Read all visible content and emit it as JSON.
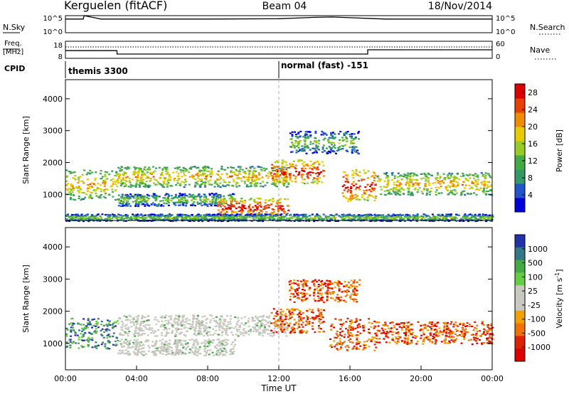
{
  "header": {
    "station": "Kerguelen (fitACF)",
    "beam": "Beam 04",
    "date": "18/Nov/2014"
  },
  "colors": {
    "power_scale": [
      "#0000dd",
      "#2255cc",
      "#339966",
      "#44aa44",
      "#99cc22",
      "#e8cc00",
      "#f08c00",
      "#e84000",
      "#dd0000"
    ],
    "velocity_scale": [
      "#2233aa",
      "#337788",
      "#44aa44",
      "#66cc44",
      "#c8c8c0",
      "#c8c8c0",
      "#f0a000",
      "#f07000",
      "#dd2200",
      "#dd0000"
    ]
  },
  "chart_data": [
    {
      "type": "line",
      "panel": "noise",
      "left_label": "N.Sky",
      "right_label": "N.Search",
      "left_ticks": [
        "10^5",
        "10^0"
      ],
      "right_ticks": [
        "10^5",
        "10^0"
      ],
      "series": [
        {
          "name": "N.Sky",
          "x": [
            0,
            1.0,
            1.05,
            2,
            8,
            12,
            13,
            14,
            15,
            16,
            17,
            18,
            24
          ],
          "y": [
            4.0,
            4.0,
            5.0,
            4.0,
            4.0,
            4.1,
            4.3,
            4.5,
            4.6,
            4.4,
            4.2,
            4.0,
            4.0
          ]
        }
      ]
    },
    {
      "type": "line",
      "panel": "frequency",
      "left_label": "Freq.",
      "left_unit": "[MHz]",
      "right_label": "Nave",
      "left_ticks": [
        "18",
        "8"
      ],
      "right_ticks": [
        "60",
        "0"
      ],
      "series": [
        {
          "name": "Freq.",
          "x": [
            0,
            2.9,
            2.9,
            17,
            17,
            24
          ],
          "y": [
            12.5,
            12.5,
            10.5,
            10.5,
            13.0,
            13.0
          ]
        },
        {
          "name": "Nave",
          "style": "dotted",
          "x": [
            0,
            24
          ],
          "y": [
            40,
            40
          ]
        }
      ]
    },
    {
      "type": "table",
      "panel": "cpid",
      "label": "CPID",
      "segments": [
        {
          "start": 0,
          "label": "themis 3300"
        },
        {
          "start": 12,
          "label": "normal (fast) -151"
        }
      ]
    },
    {
      "type": "heatmap",
      "panel": "power",
      "ylabel": "Slant Range [km]",
      "yticks": [
        1000,
        2000,
        3000,
        4000
      ],
      "ylim": [
        180,
        4600
      ],
      "xlim": [
        0,
        24
      ],
      "colorbar": {
        "label": "Power [dB]",
        "ticks": [
          4,
          8,
          12,
          16,
          20,
          24,
          28
        ],
        "range": [
          0,
          30
        ]
      },
      "bands": [
        {
          "x0": 0.0,
          "x1": 2.9,
          "y0": 850,
          "y1": 1800,
          "level": "mid"
        },
        {
          "x0": 2.9,
          "x1": 12.5,
          "y0": 1250,
          "y1": 1900,
          "level": "mid"
        },
        {
          "x0": 2.9,
          "x1": 9.5,
          "y0": 650,
          "y1": 1050,
          "level": "low"
        },
        {
          "x0": 8.5,
          "x1": 12.5,
          "y0": 300,
          "y1": 900,
          "level": "high"
        },
        {
          "x0": 11.5,
          "x1": 14.5,
          "y0": 1350,
          "y1": 2100,
          "level": "high"
        },
        {
          "x0": 12.5,
          "x1": 16.5,
          "y0": 2300,
          "y1": 3000,
          "level": "low"
        },
        {
          "x0": 15.5,
          "x1": 17.5,
          "y0": 800,
          "y1": 1800,
          "level": "high"
        },
        {
          "x0": 17.5,
          "x1": 24.0,
          "y0": 1000,
          "y1": 1700,
          "level": "mid"
        },
        {
          "x0": 0.0,
          "x1": 24.0,
          "y0": 180,
          "y1": 400,
          "level": "low"
        }
      ]
    },
    {
      "type": "heatmap",
      "panel": "velocity",
      "ylabel": "Slant Range [km]",
      "xlabel": "Time UT",
      "yticks": [
        1000,
        2000,
        3000,
        4000
      ],
      "ylim": [
        180,
        4600
      ],
      "xlim": [
        0,
        24
      ],
      "xticks": [
        "00:00",
        "04:00",
        "08:00",
        "12:00",
        "16:00",
        "20:00",
        "00:00"
      ],
      "colorbar": {
        "label": "Velocity [m s^-1]",
        "ticks": [
          "1000",
          "500",
          "100",
          "25",
          "-25",
          "-100",
          "-500",
          "-1000"
        ]
      },
      "bands": [
        {
          "x0": 0.0,
          "x1": 2.9,
          "y0": 850,
          "y1": 1800,
          "level": "pos"
        },
        {
          "x0": 2.9,
          "x1": 12.5,
          "y0": 1250,
          "y1": 1900,
          "level": "gs"
        },
        {
          "x0": 2.9,
          "x1": 9.5,
          "y0": 650,
          "y1": 1150,
          "level": "gs"
        },
        {
          "x0": 11.5,
          "x1": 14.5,
          "y0": 1350,
          "y1": 2100,
          "level": "neg"
        },
        {
          "x0": 12.5,
          "x1": 16.5,
          "y0": 2300,
          "y1": 3000,
          "level": "neg"
        },
        {
          "x0": 14.8,
          "x1": 17.5,
          "y0": 800,
          "y1": 1800,
          "level": "neg"
        },
        {
          "x0": 17.5,
          "x1": 24.0,
          "y0": 1000,
          "y1": 1700,
          "level": "neg"
        }
      ]
    }
  ]
}
